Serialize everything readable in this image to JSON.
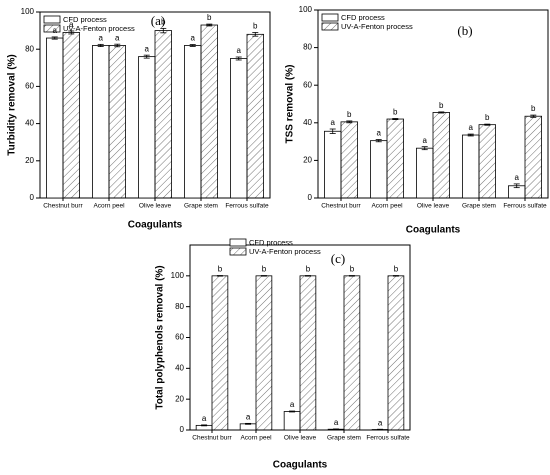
{
  "chart_data": [
    {
      "type": "bar",
      "panel_label": "(a)",
      "ylabel": "Turbidity removal (%)",
      "xlabel": "Coagulants",
      "categories": [
        "Chestnut burr",
        "Acorn peel",
        "Olive leave",
        "Grape stem",
        "Ferrous sulfate"
      ],
      "series": [
        {
          "name": "CFD process",
          "color": "#ffffff",
          "hatch": false,
          "values": [
            86,
            82,
            76,
            82,
            75
          ],
          "errors": [
            0.6,
            0.6,
            0.8,
            0.5,
            0.8
          ],
          "letters": [
            "a",
            "a",
            "a",
            "a",
            "a"
          ]
        },
        {
          "name": "UV-A-Fenton process",
          "color": "#ffffff",
          "hatch": true,
          "values": [
            89,
            82,
            90,
            93,
            88
          ],
          "errors": [
            0.8,
            0.7,
            1.2,
            0.5,
            1.0
          ],
          "letters": [
            "a",
            "a",
            "b",
            "b",
            "b"
          ]
        }
      ],
      "ylim": [
        0,
        100
      ],
      "yticks": [
        0,
        20,
        40,
        60,
        80,
        100
      ],
      "legend": "top-left"
    },
    {
      "type": "bar",
      "panel_label": "(b)",
      "ylabel": "TSS removal (%)",
      "xlabel": "Coagulants",
      "categories": [
        "Chestnut burr",
        "Acorn peel",
        "Olive leave",
        "Grape stem",
        "Ferrous sulfate"
      ],
      "series": [
        {
          "name": "CFD process",
          "color": "#ffffff",
          "hatch": false,
          "values": [
            35.5,
            30.5,
            26.5,
            33.5,
            6.5
          ],
          "errors": [
            1.2,
            0.6,
            0.8,
            0.5,
            1.0
          ],
          "letters": [
            "a",
            "a",
            "a",
            "a",
            "a"
          ]
        },
        {
          "name": "UV-A-Fenton process",
          "color": "#ffffff",
          "hatch": true,
          "values": [
            40.5,
            42,
            45.5,
            39,
            43.5
          ],
          "errors": [
            0.5,
            0.3,
            0.3,
            0.3,
            0.6
          ],
          "letters": [
            "b",
            "b",
            "b",
            "b",
            "b"
          ]
        }
      ],
      "ylim": [
        0,
        100
      ],
      "yticks": [
        0,
        20,
        40,
        60,
        80,
        100
      ],
      "legend": "top-left"
    },
    {
      "type": "bar",
      "panel_label": "(c)",
      "ylabel": "Total polyphenols removal (%)",
      "xlabel": "Coagulants",
      "categories": [
        "Chestnut burr",
        "Acorn peel",
        "Olive leave",
        "Grape stem",
        "Ferrous sulfate"
      ],
      "series": [
        {
          "name": "CFD process",
          "color": "#ffffff",
          "hatch": false,
          "values": [
            3,
            4,
            12,
            0.5,
            0.3
          ],
          "errors": [
            0.3,
            0.3,
            0.3,
            0.2,
            0.2
          ],
          "letters": [
            "a",
            "a",
            "a",
            "a",
            "a"
          ]
        },
        {
          "name": "UV-A-Fenton process",
          "color": "#ffffff",
          "hatch": true,
          "values": [
            100,
            100,
            100,
            100,
            100
          ],
          "errors": [
            0.2,
            0.2,
            0.2,
            0.2,
            0.2
          ],
          "letters": [
            "b",
            "b",
            "b",
            "b",
            "b"
          ]
        }
      ],
      "ylim": [
        0,
        120
      ],
      "yticks": [
        0,
        20,
        40,
        60,
        80,
        100
      ],
      "legend": "top"
    }
  ]
}
